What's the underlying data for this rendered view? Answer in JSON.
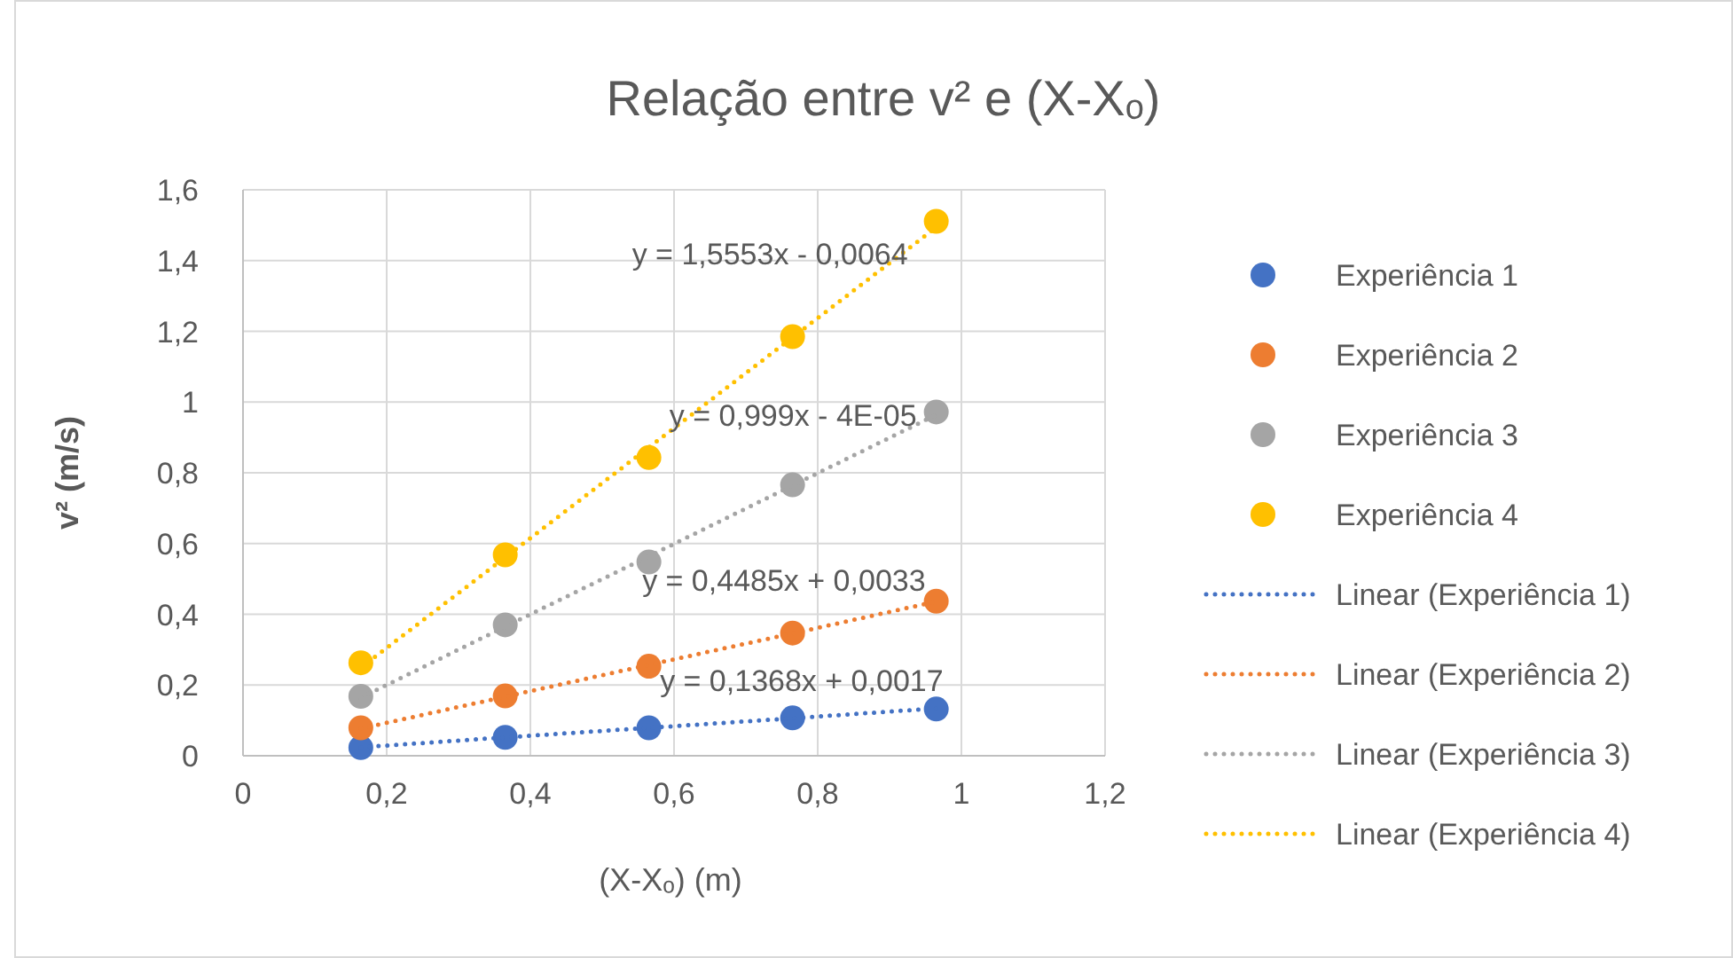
{
  "chart_data": {
    "type": "scatter",
    "title": "Relação entre v² e (X-Xₒ)",
    "xlabel": "(X-Xₒ) (m)",
    "ylabel": "v² (m/s)",
    "x": [
      0.164,
      0.365,
      0.565,
      0.765,
      0.965
    ],
    "xlim": [
      0,
      1.2
    ],
    "xticks": [
      {
        "value": 0,
        "label": "0"
      },
      {
        "value": 0.2,
        "label": "0,2"
      },
      {
        "value": 0.4,
        "label": "0,4"
      },
      {
        "value": 0.6,
        "label": "0,6"
      },
      {
        "value": 0.8,
        "label": "0,8"
      },
      {
        "value": 1,
        "label": "1"
      },
      {
        "value": 1.2,
        "label": "1,2"
      }
    ],
    "ylim": [
      0,
      1.6
    ],
    "yticks": [
      {
        "value": 0,
        "label": "0"
      },
      {
        "value": 0.2,
        "label": "0,2"
      },
      {
        "value": 0.4,
        "label": "0,4"
      },
      {
        "value": 0.6,
        "label": "0,6"
      },
      {
        "value": 0.8,
        "label": "0,8"
      },
      {
        "value": 1,
        "label": "1"
      },
      {
        "value": 1.2,
        "label": "1,2"
      },
      {
        "value": 1.4,
        "label": "1,4"
      },
      {
        "value": 1.6,
        "label": "1,6"
      }
    ],
    "grid": true,
    "legend": "right",
    "marker": "circle",
    "series": [
      {
        "name": "Experiência 1",
        "color": "#4472c4",
        "values": [
          0.023,
          0.052,
          0.079,
          0.107,
          0.132
        ]
      },
      {
        "name": "Experiência 2",
        "color": "#ed7d31",
        "values": [
          0.079,
          0.169,
          0.253,
          0.347,
          0.437
        ]
      },
      {
        "name": "Experiência 3",
        "color": "#a5a5a5",
        "values": [
          0.168,
          0.37,
          0.548,
          0.766,
          0.972
        ]
      },
      {
        "name": "Experiência 4",
        "color": "#ffc000",
        "values": [
          0.263,
          0.568,
          0.843,
          1.185,
          1.511
        ]
      },
      {
        "name": "Linear (Experiência 1)",
        "type": "line",
        "line_style": "dotted",
        "marker": "none",
        "color": "#4472c4",
        "values": [
          0.024,
          0.052,
          0.079,
          0.106,
          0.134
        ]
      },
      {
        "name": "Linear (Experiência 2)",
        "type": "line",
        "line_style": "dotted",
        "marker": "none",
        "color": "#ed7d31",
        "values": [
          0.077,
          0.167,
          0.257,
          0.346,
          0.436
        ]
      },
      {
        "name": "Linear (Experiência 3)",
        "type": "line",
        "line_style": "dotted",
        "marker": "none",
        "color": "#a5a5a5",
        "values": [
          0.164,
          0.365,
          0.564,
          0.764,
          0.964
        ]
      },
      {
        "name": "Linear (Experiência 4)",
        "type": "line",
        "line_style": "dotted",
        "marker": "none",
        "color": "#ffc000",
        "values": [
          0.249,
          0.561,
          0.872,
          1.183,
          1.494
        ]
      }
    ],
    "annotations": [
      "y = 1,5553x - 0,0064",
      "y = 0,999x - 4E-05",
      "y = 0,4485x + 0,0033",
      "y = 0,1368x + 0,0017"
    ]
  }
}
